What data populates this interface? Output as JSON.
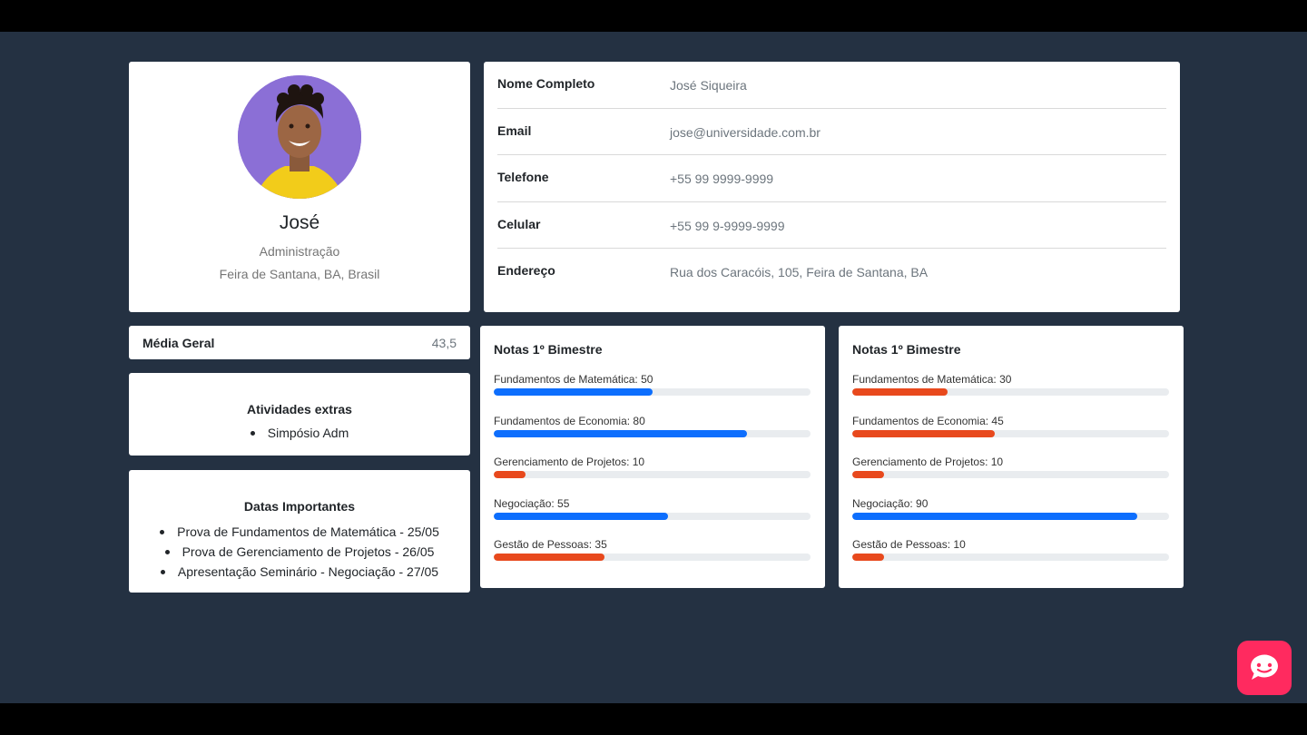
{
  "profile": {
    "name": "José",
    "course": "Administração",
    "location": "Feira de Santana, BA, Brasil"
  },
  "info": [
    {
      "label": "Nome Completo",
      "value": "José Siqueira"
    },
    {
      "label": "Email",
      "value": "jose@universidade.com.br"
    },
    {
      "label": "Telefone",
      "value": "+55 99 9999-9999"
    },
    {
      "label": "Celular",
      "value": "+55 99 9-9999-9999"
    },
    {
      "label": "Endereço",
      "value": "Rua dos Caracóis, 105, Feira de Santana, BA"
    }
  ],
  "media": {
    "label": "Média Geral",
    "value": "43,5"
  },
  "atividades": {
    "title": "Atividades extras",
    "items": [
      "Simpósio Adm"
    ]
  },
  "datas": {
    "title": "Datas Importantes",
    "items": [
      "Prova de Fundamentos de Matemática - 25/05",
      "Prova de Gerenciamento de Projetos - 26/05",
      "Apresentação Seminário - Negociação - 27/05"
    ]
  },
  "colors": {
    "high": "#0d6efd",
    "low": "#e8491d",
    "track": "#e9ecef",
    "chat": "#ff2a5f"
  },
  "grades": [
    {
      "title": "Notas 1º Bimestre",
      "items": [
        {
          "label": "Fundamentos de Matemática: 50",
          "value": 50,
          "status": "high"
        },
        {
          "label": "Fundamentos de Economia: 80",
          "value": 80,
          "status": "high"
        },
        {
          "label": "Gerenciamento de Projetos: 10",
          "value": 10,
          "status": "low"
        },
        {
          "label": "Negociação: 55",
          "value": 55,
          "status": "high"
        },
        {
          "label": "Gestão de Pessoas: 35",
          "value": 35,
          "status": "low"
        }
      ]
    },
    {
      "title": "Notas 1º Bimestre",
      "items": [
        {
          "label": "Fundamentos de Matemática: 30",
          "value": 30,
          "status": "low"
        },
        {
          "label": "Fundamentos de Economia: 45",
          "value": 45,
          "status": "low"
        },
        {
          "label": "Gerenciamento de Projetos: 10",
          "value": 10,
          "status": "low"
        },
        {
          "label": "Negociação: 90",
          "value": 90,
          "status": "high"
        },
        {
          "label": "Gestão de Pessoas: 10",
          "value": 10,
          "status": "low"
        }
      ]
    }
  ],
  "chat": {
    "icon": "chat-bubble-icon"
  }
}
